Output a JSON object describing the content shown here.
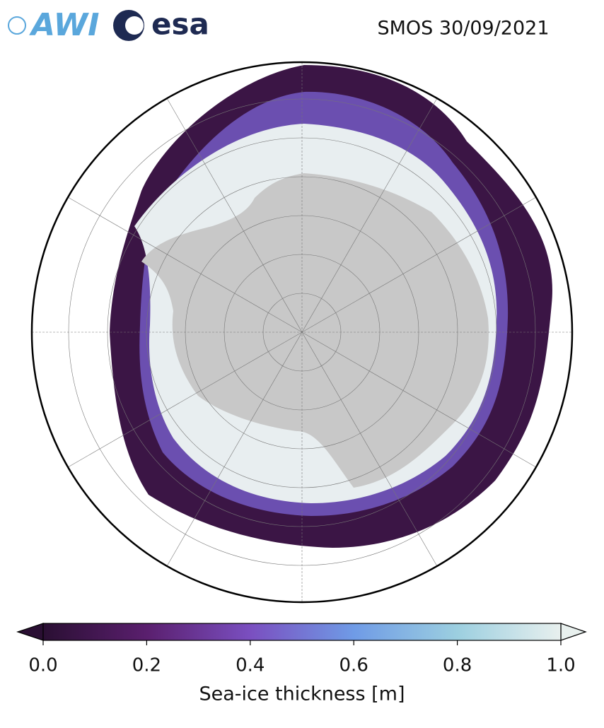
{
  "logos": [
    "AWI",
    "esa"
  ],
  "title": "SMOS 30/09/2021",
  "colorbar": {
    "label": "Sea-ice thickness [m]",
    "lim": [
      0,
      1
    ],
    "ticks": [
      {
        "value": 0,
        "label": "0.0"
      },
      {
        "value": 0.2,
        "label": "0.2"
      },
      {
        "value": 0.4,
        "label": "0.4"
      },
      {
        "value": 0.6,
        "label": "0.6"
      },
      {
        "value": 0.8,
        "label": "0.8"
      },
      {
        "value": 1,
        "label": "1.0"
      }
    ],
    "colors": [
      "#2a0f33",
      "#5a1f6e",
      "#7a4fc0",
      "#6f9be6",
      "#9ccfe0",
      "#e8f0ee"
    ]
  }
}
